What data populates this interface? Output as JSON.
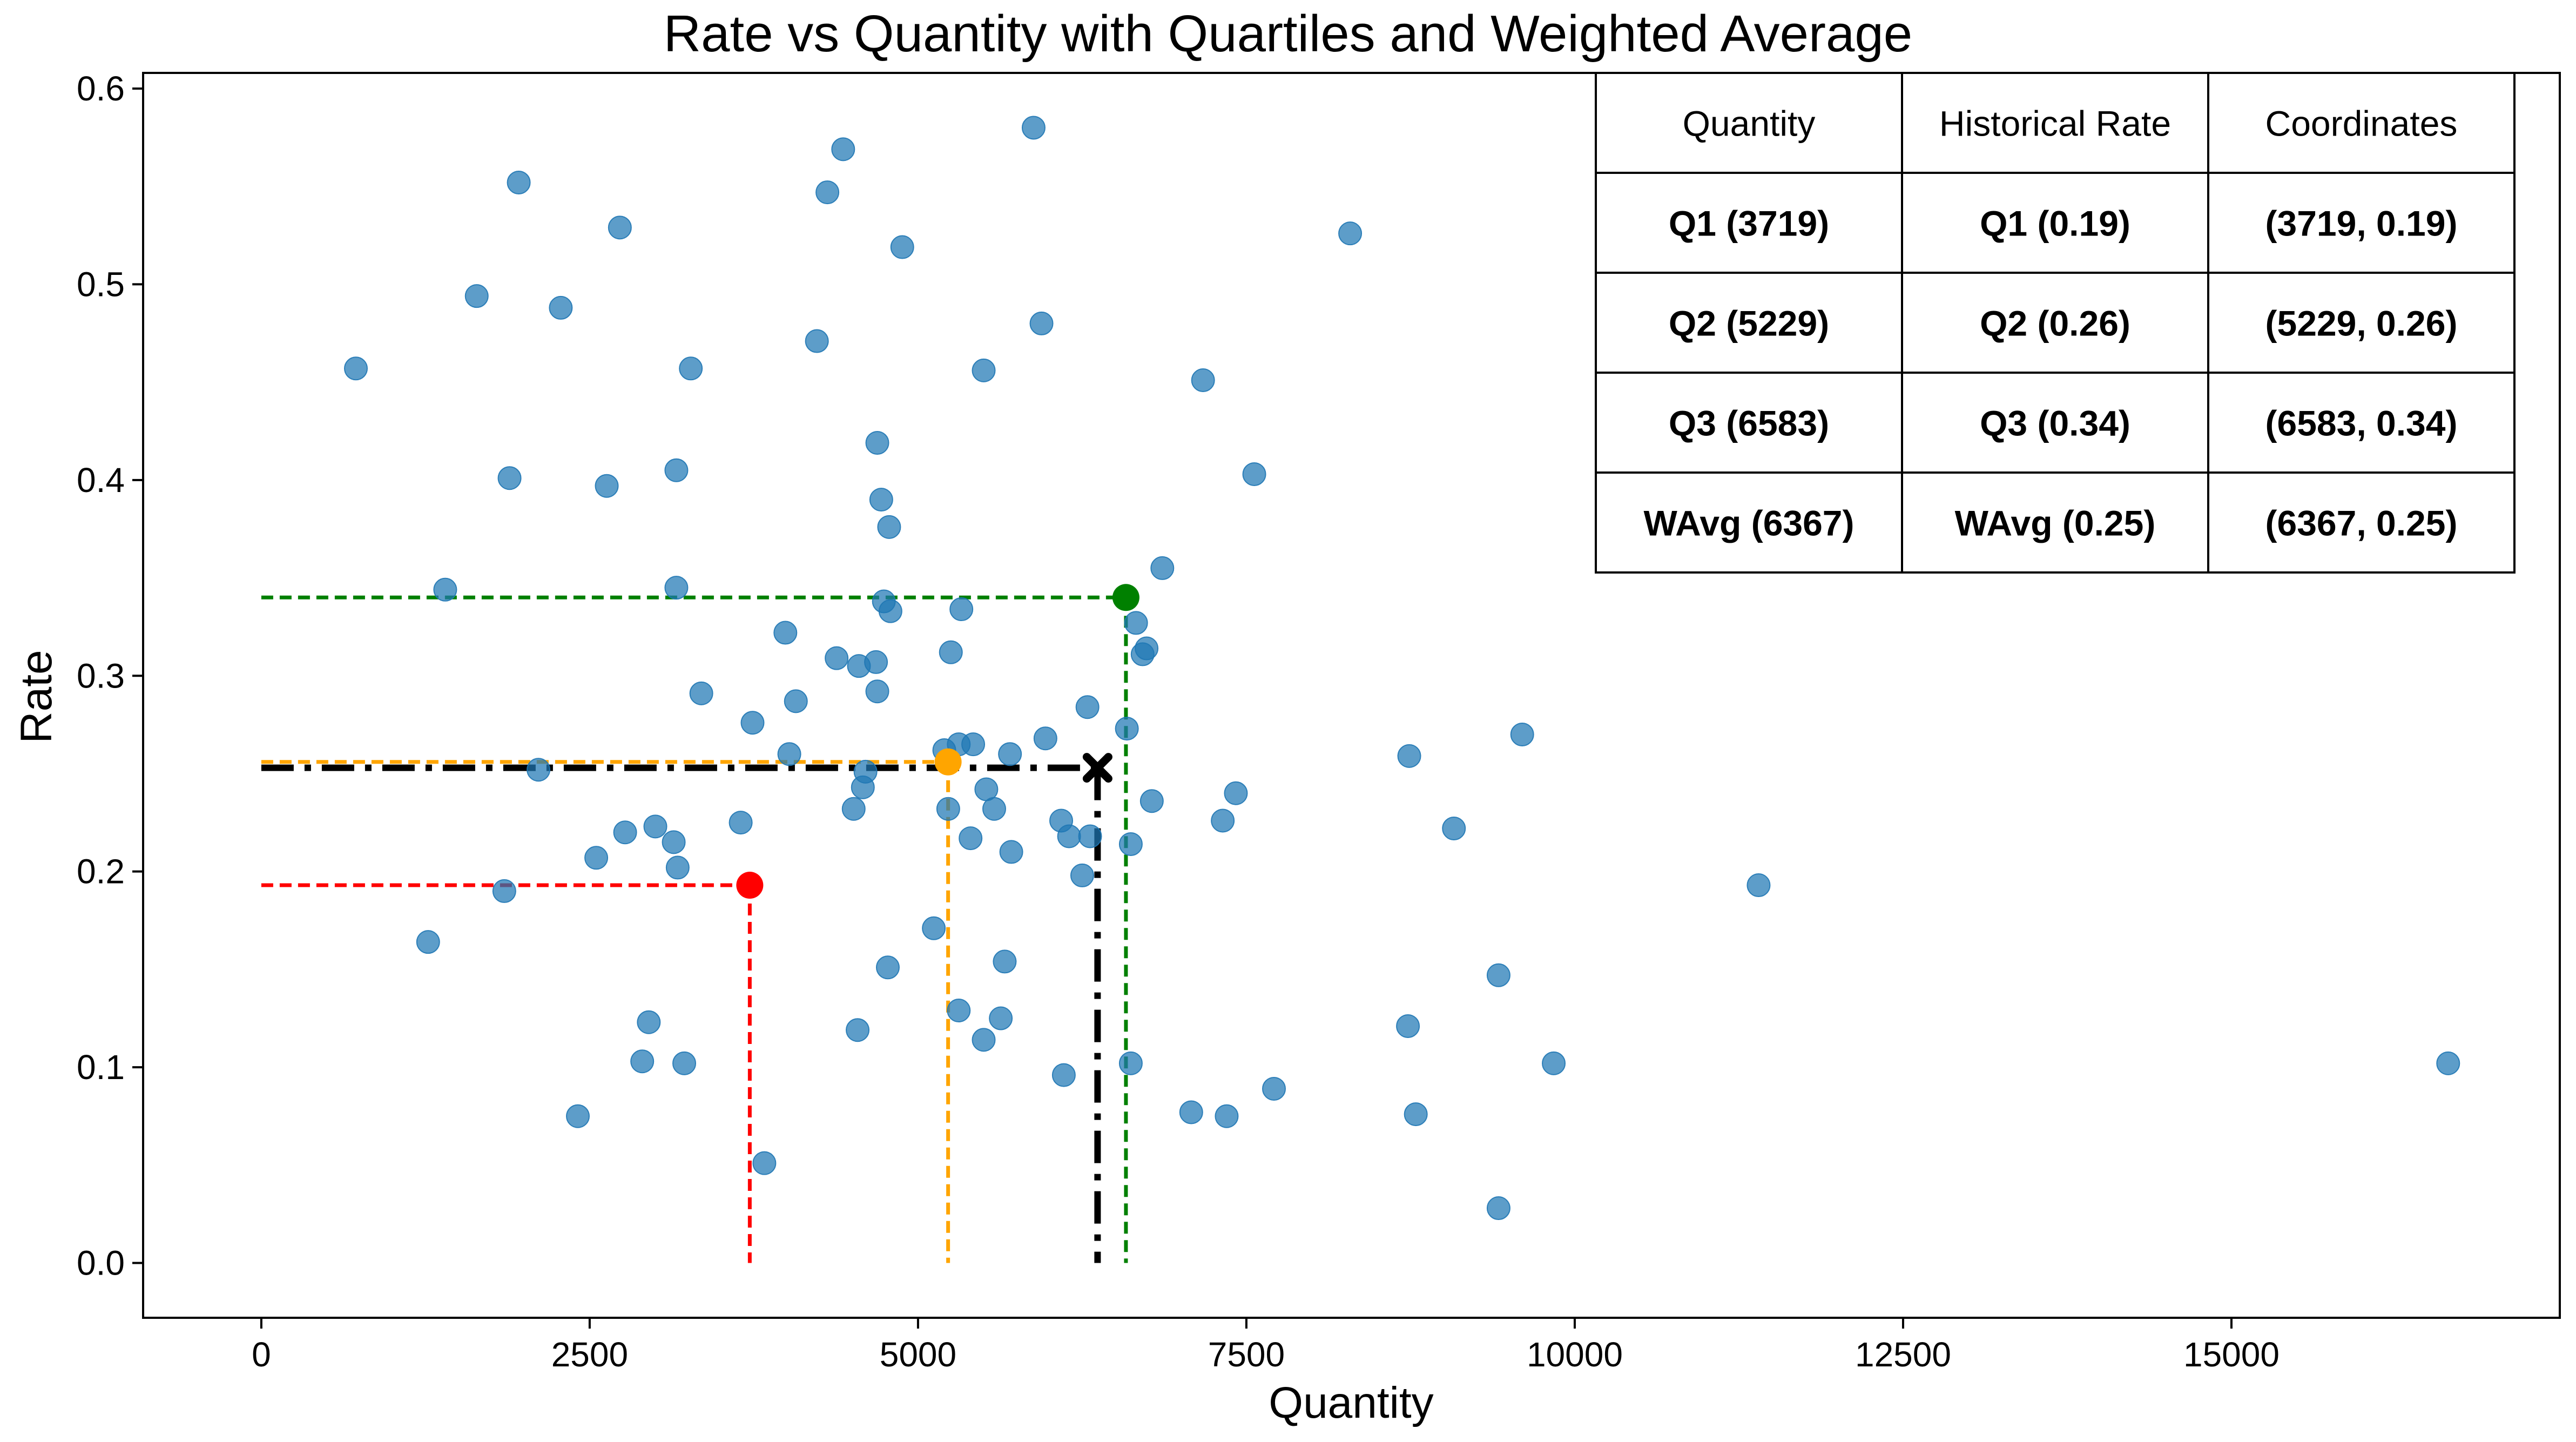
{
  "chart_data": {
    "type": "scatter",
    "title": "Rate vs Quantity with Quartiles and Weighted Average",
    "xlabel": "Quantity",
    "ylabel": "Rate",
    "xlim": [
      -900,
      17500
    ],
    "ylim": [
      -0.028,
      0.608
    ],
    "xticks": [
      0,
      2500,
      5000,
      7500,
      10000,
      12500,
      15000
    ],
    "yticks": [
      0.0,
      0.1,
      0.2,
      0.3,
      0.4,
      0.5,
      0.6
    ],
    "xtick_labels": [
      "0",
      "2500",
      "5000",
      "7500",
      "10000",
      "12500",
      "15000"
    ],
    "ytick_labels": [
      "0.0",
      "0.1",
      "0.2",
      "0.3",
      "0.4",
      "0.5",
      "0.6"
    ],
    "grid": false,
    "scatter_color": "#1f77b4",
    "points": [
      [
        720,
        0.457
      ],
      [
        1960,
        0.552
      ],
      [
        1640,
        0.494
      ],
      [
        2280,
        0.488
      ],
      [
        2730,
        0.529
      ],
      [
        1890,
        0.401
      ],
      [
        2630,
        0.397
      ],
      [
        3160,
        0.405
      ],
      [
        3270,
        0.457
      ],
      [
        4230,
        0.471
      ],
      [
        4310,
        0.547
      ],
      [
        4430,
        0.569
      ],
      [
        4880,
        0.519
      ],
      [
        5880,
        0.58
      ],
      [
        5940,
        0.48
      ],
      [
        5500,
        0.456
      ],
      [
        4690,
        0.419
      ],
      [
        4720,
        0.39
      ],
      [
        4780,
        0.376
      ],
      [
        7170,
        0.451
      ],
      [
        7560,
        0.403
      ],
      [
        8290,
        0.526
      ],
      [
        1400,
        0.344
      ],
      [
        3160,
        0.345
      ],
      [
        3350,
        0.291
      ],
      [
        3740,
        0.276
      ],
      [
        3990,
        0.322
      ],
      [
        4070,
        0.287
      ],
      [
        4020,
        0.26
      ],
      [
        4380,
        0.309
      ],
      [
        4550,
        0.305
      ],
      [
        4680,
        0.307
      ],
      [
        4690,
        0.292
      ],
      [
        4740,
        0.338
      ],
      [
        4790,
        0.333
      ],
      [
        5250,
        0.312
      ],
      [
        5330,
        0.334
      ],
      [
        5200,
        0.262
      ],
      [
        5310,
        0.265
      ],
      [
        5420,
        0.265
      ],
      [
        5700,
        0.26
      ],
      [
        5970,
        0.268
      ],
      [
        6290,
        0.284
      ],
      [
        6590,
        0.273
      ],
      [
        6660,
        0.327
      ],
      [
        6710,
        0.311
      ],
      [
        6740,
        0.314
      ],
      [
        6860,
        0.355
      ],
      [
        2110,
        0.252
      ],
      [
        2550,
        0.207
      ],
      [
        2770,
        0.22
      ],
      [
        3000,
        0.223
      ],
      [
        3140,
        0.215
      ],
      [
        3170,
        0.202
      ],
      [
        3650,
        0.225
      ],
      [
        4510,
        0.232
      ],
      [
        4580,
        0.243
      ],
      [
        4600,
        0.251
      ],
      [
        5120,
        0.171
      ],
      [
        5230,
        0.232
      ],
      [
        5400,
        0.217
      ],
      [
        5520,
        0.242
      ],
      [
        5580,
        0.232
      ],
      [
        5710,
        0.21
      ],
      [
        6090,
        0.226
      ],
      [
        6150,
        0.218
      ],
      [
        6250,
        0.198
      ],
      [
        6310,
        0.218
      ],
      [
        6620,
        0.214
      ],
      [
        6780,
        0.236
      ],
      [
        7320,
        0.226
      ],
      [
        7420,
        0.24
      ],
      [
        1270,
        0.164
      ],
      [
        1850,
        0.19
      ],
      [
        2950,
        0.123
      ],
      [
        2900,
        0.103
      ],
      [
        3220,
        0.102
      ],
      [
        2410,
        0.075
      ],
      [
        3830,
        0.051
      ],
      [
        4540,
        0.119
      ],
      [
        4770,
        0.151
      ],
      [
        5310,
        0.129
      ],
      [
        5500,
        0.114
      ],
      [
        5630,
        0.125
      ],
      [
        5660,
        0.154
      ],
      [
        6110,
        0.096
      ],
      [
        6620,
        0.102
      ],
      [
        7080,
        0.077
      ],
      [
        7350,
        0.075
      ],
      [
        7710,
        0.089
      ],
      [
        8740,
        0.259
      ],
      [
        9080,
        0.222
      ],
      [
        9600,
        0.27
      ],
      [
        11400,
        0.193
      ],
      [
        8730,
        0.121
      ],
      [
        8790,
        0.076
      ],
      [
        9420,
        0.147
      ],
      [
        9840,
        0.102
      ],
      [
        9420,
        0.028
      ],
      [
        16650,
        0.102
      ]
    ],
    "reference_lines": [
      {
        "name": "Q1",
        "x": 3719,
        "y": 0.193,
        "color": "#ff0000",
        "style": "dashed"
      },
      {
        "name": "Q2",
        "x": 5229,
        "y": 0.256,
        "color": "#ffa500",
        "style": "dashed"
      },
      {
        "name": "Q3",
        "x": 6583,
        "y": 0.34,
        "color": "#008000",
        "style": "dashed"
      },
      {
        "name": "WAvg",
        "x": 6367,
        "y": 0.253,
        "color": "#000000",
        "style": "dashdot",
        "marker": "x"
      }
    ],
    "table": {
      "headers": [
        "Quantity",
        "Historical Rate",
        "Coordinates"
      ],
      "rows": [
        {
          "cells": [
            "Q1 (3719)",
            "Q1 (0.19)",
            "(3719, 0.19)"
          ],
          "color": "#ff0000"
        },
        {
          "cells": [
            "Q2 (5229)",
            "Q2 (0.26)",
            "(5229, 0.26)"
          ],
          "color": "#ffa500"
        },
        {
          "cells": [
            "Q3 (6583)",
            "Q3 (0.34)",
            "(6583, 0.34)"
          ],
          "color": "#008000"
        },
        {
          "cells": [
            "WAvg (6367)",
            "WAvg (0.25)",
            "(6367, 0.25)"
          ],
          "color": "#000000"
        }
      ]
    }
  }
}
